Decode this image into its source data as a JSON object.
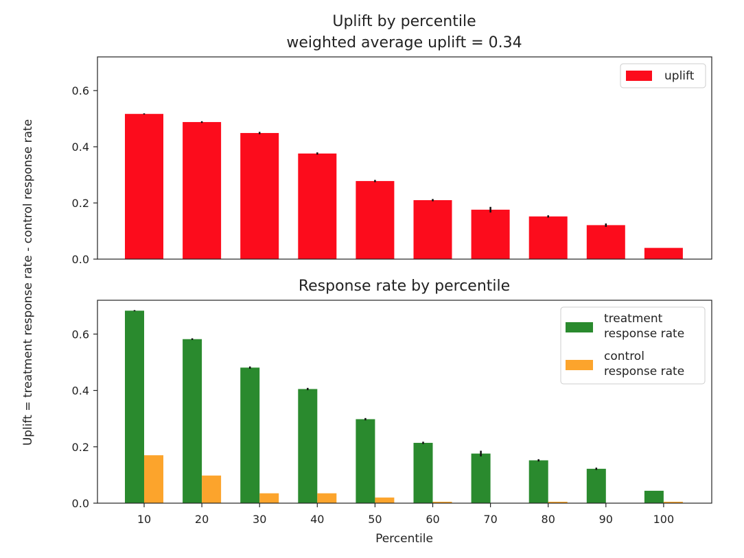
{
  "chart_data": [
    {
      "type": "bar",
      "title": "Uplift by percentile",
      "subtitle": "weighted average uplift = 0.34",
      "ylabel": "Uplift = treatment response rate - control response rate",
      "xlabel": "",
      "ylim": [
        0,
        0.72
      ],
      "yticks": [
        0.0,
        0.2,
        0.4,
        0.6
      ],
      "ytick_labels": [
        "0.0",
        "0.2",
        "0.4",
        "0.6"
      ],
      "categories": [
        "10",
        "20",
        "30",
        "40",
        "50",
        "60",
        "70",
        "80",
        "90",
        "100"
      ],
      "series": [
        {
          "name": "uplift",
          "color": "#fc0c1c",
          "values": [
            0.517,
            0.488,
            0.449,
            0.376,
            0.278,
            0.21,
            0.176,
            0.152,
            0.121,
            0.04
          ],
          "errors": [
            0.002,
            0.003,
            0.004,
            0.004,
            0.004,
            0.004,
            0.01,
            0.004,
            0.006,
            0.0
          ]
        }
      ],
      "legend": {
        "position": "top-right"
      }
    },
    {
      "type": "bar",
      "title": "Response rate by percentile",
      "xlabel": "Percentile",
      "ylim": [
        0,
        0.72
      ],
      "yticks": [
        0.0,
        0.2,
        0.4,
        0.6
      ],
      "ytick_labels": [
        "0.0",
        "0.2",
        "0.4",
        "0.6"
      ],
      "categories": [
        "10",
        "20",
        "30",
        "40",
        "50",
        "60",
        "70",
        "80",
        "90",
        "100"
      ],
      "series": [
        {
          "name": "treatment\nresponse rate",
          "color": "#2a8a2e",
          "values": [
            0.683,
            0.582,
            0.481,
            0.405,
            0.298,
            0.214,
            0.176,
            0.152,
            0.122,
            0.044
          ],
          "errors": [
            0.002,
            0.003,
            0.004,
            0.004,
            0.004,
            0.004,
            0.01,
            0.004,
            0.004,
            0.0
          ]
        },
        {
          "name": "control\nresponse rate",
          "color": "#fca42c",
          "values": [
            0.17,
            0.098,
            0.035,
            0.035,
            0.02,
            0.005,
            0.0,
            0.005,
            0.0,
            0.005
          ]
        }
      ],
      "legend": {
        "position": "top-right"
      }
    }
  ]
}
